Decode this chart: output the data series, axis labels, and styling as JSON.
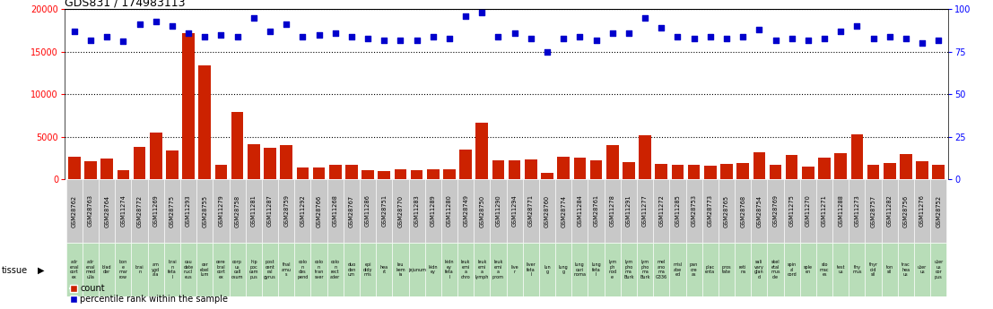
{
  "title": "GDS831 / 174983113",
  "gsm_ids": [
    "GSM28762",
    "GSM28763",
    "GSM28764",
    "GSM11274",
    "GSM28772",
    "GSM11269",
    "GSM28775",
    "GSM11293",
    "GSM28755",
    "GSM11279",
    "GSM28758",
    "GSM11281",
    "GSM11287",
    "GSM28759",
    "GSM11292",
    "GSM28766",
    "GSM11268",
    "GSM28767",
    "GSM11286",
    "GSM28751",
    "GSM28770",
    "GSM11283",
    "GSM11289",
    "GSM11280",
    "GSM28749",
    "GSM28750",
    "GSM11290",
    "GSM11294",
    "GSM28771",
    "GSM28760",
    "GSM28774",
    "GSM11284",
    "GSM28761",
    "GSM11278",
    "GSM11291",
    "GSM11277",
    "GSM11272",
    "GSM11285",
    "GSM28753",
    "GSM28773",
    "GSM28765",
    "GSM28768",
    "GSM28754",
    "GSM28769",
    "GSM11275",
    "GSM11270",
    "GSM11271",
    "GSM11288",
    "GSM11273",
    "GSM28757",
    "GSM11282",
    "GSM28756",
    "GSM11276",
    "GSM28752"
  ],
  "counts": [
    2600,
    2100,
    2400,
    1100,
    3800,
    5500,
    3400,
    17200,
    13400,
    1700,
    7900,
    4100,
    3700,
    4000,
    1400,
    1400,
    1700,
    1700,
    1100,
    1000,
    1200,
    1100,
    1200,
    1200,
    3500,
    6600,
    2200,
    2200,
    2300,
    800,
    2600,
    2500,
    2200,
    4000,
    2000,
    5200,
    1800,
    1700,
    1700,
    1600,
    1800,
    1900,
    3200,
    1700,
    2900,
    1500,
    2500,
    3100,
    5300,
    1700,
    1900,
    3000,
    2100,
    1700
  ],
  "percentiles": [
    87,
    82,
    84,
    81,
    91,
    93,
    90,
    86,
    84,
    85,
    84,
    95,
    87,
    91,
    84,
    85,
    86,
    84,
    83,
    82,
    82,
    82,
    84,
    83,
    96,
    98,
    84,
    86,
    83,
    75,
    83,
    84,
    82,
    86,
    86,
    95,
    89,
    84,
    83,
    84,
    83,
    84,
    88,
    82,
    83,
    82,
    83,
    87,
    90,
    83,
    84,
    83,
    80,
    82
  ],
  "tissues": [
    "adr\nenal\ncort\nex",
    "adr\nenal\nmed\nulla",
    "blad\nder",
    "bon\ne\nmar\nrow",
    "brai\nn",
    "am\nygd\nala",
    "brai\nn\nfeta\nl",
    "cau\ndate\nnucl\neus",
    "cer\nebel\nlum",
    "cere\nbral\ncort\nex",
    "corp\nus\ncall\nosum",
    "hip\npoc\ncam\npus",
    "post\ncent\nral\ngyrus",
    "thal\namu\ns",
    "colo\nn\ndes\npend",
    "colo\nn\ntran\nsver",
    "colo\nn\nrect\nader",
    "duo\nden\num",
    "epi\ndidy\nmis",
    "hea\nrt",
    "leu\nkem\nia",
    "jejunum",
    "kidn\ney",
    "kidn\ney\nfeta\nl",
    "leuk\nemi\na\nchro",
    "leuk\nemi\na\nlymph",
    "leuk\nemi\na\nprom",
    "live\nr",
    "liver\nfeta\nl",
    "lun\ng",
    "lung\ng",
    "lung\ncari\nnoma",
    "lung\nfeta\nl",
    "lym\nph\nnod\ne",
    "lym\npho\nma\nBurk",
    "lym\npho\nma\nBurk",
    "mel\nano\nma\nG336",
    "misl\nabe\ned",
    "pan\ncre\nas",
    "plac\nenta",
    "pros\ntate",
    "reti\nna",
    "sali\nvary\nglan\nd",
    "skel\netal\nmus\ncle",
    "spin\nal\ncord",
    "sple\nen",
    "sto\nmac\nes",
    "test\nus",
    "thy\nmus",
    "thyr\noid\nsil",
    "ton\nsil",
    "trac\nhea\nus",
    "uter\nus",
    "uter\nus\ncor\npus"
  ],
  "ylim_left": [
    0,
    20000
  ],
  "ylim_right": [
    0,
    100
  ],
  "yticks_left": [
    0,
    5000,
    10000,
    15000,
    20000
  ],
  "yticks_right": [
    0,
    25,
    50,
    75,
    100
  ],
  "bar_color": "#cc2200",
  "dot_color": "#0000cc",
  "bg_color_gray": "#c8c8c8",
  "bg_color_green": "#b8ddb8",
  "title_color": "black",
  "left_axis_color": "red",
  "right_axis_color": "blue"
}
